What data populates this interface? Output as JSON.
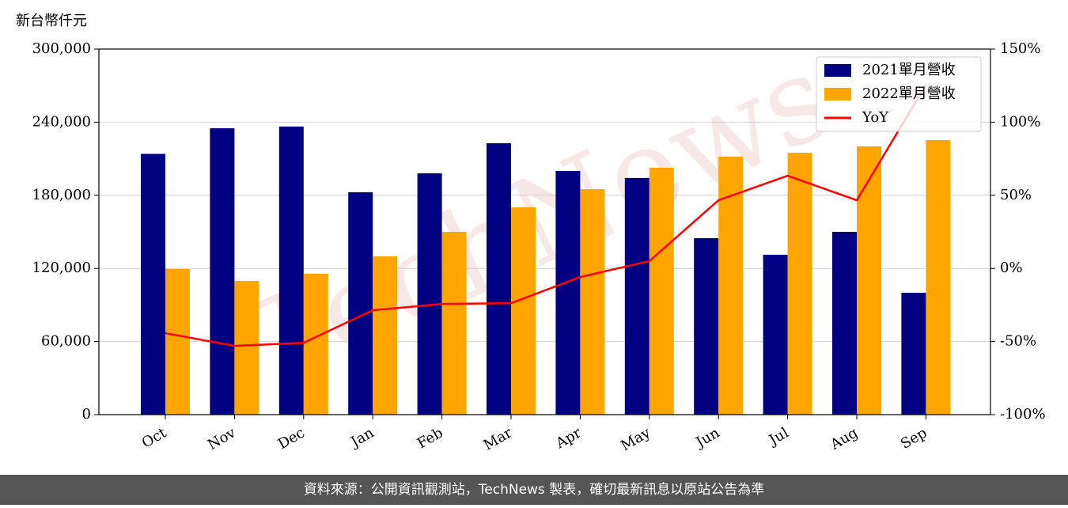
{
  "chart_data": {
    "type": "bar_line",
    "y_label": "新台幣仟元",
    "watermark": "TechNews",
    "footer": "資料來源：公開資訊觀測站，TechNews 製表，確切最新訊息以原站公告為準",
    "categories": [
      "Oct",
      "Nov",
      "Dec",
      "Jan",
      "Feb",
      "Mar",
      "Apr",
      "May",
      "Jun",
      "Jul",
      "Aug",
      "Sep"
    ],
    "series": [
      {
        "name": "2021單月營收",
        "color": "#000080",
        "type": "bar",
        "values": [
          214000,
          235000,
          236400,
          182500,
          198000,
          222700,
          200000,
          194200,
          144800,
          131200,
          150000,
          100000
        ]
      },
      {
        "name": "2022單月營收",
        "color": "#ffa500",
        "type": "bar",
        "values": [
          119500,
          109700,
          115600,
          129900,
          150000,
          170100,
          185000,
          202600,
          211700,
          214900,
          220100,
          225300
        ]
      },
      {
        "name": "YoY",
        "color": "#ff0000",
        "type": "line",
        "axis": "y2",
        "values": [
          -44.3,
          -53,
          -50.9,
          -28.6,
          -24.3,
          -23.8,
          -5.9,
          5,
          46.6,
          63.4,
          46.6,
          125.5
        ]
      }
    ],
    "ylim": [
      0,
      300000
    ],
    "yticks": [
      0,
      {
        "value": 60000,
        "label": "60,000"
      },
      {
        "value": 120000,
        "label": "120,000"
      },
      {
        "value": 180000,
        "label": "180,000"
      },
      {
        "value": 240000,
        "label": "240,000"
      },
      {
        "value": 300000,
        "label": "300,000"
      }
    ],
    "y2lim": [
      -100,
      150
    ],
    "y2ticks": [
      {
        "value": -100,
        "label": "-100%"
      },
      {
        "value": -50,
        "label": "-50%"
      },
      {
        "value": 0,
        "label": "0%"
      },
      {
        "value": 50,
        "label": "50%"
      },
      {
        "value": 100,
        "label": "100%"
      },
      {
        "value": 150,
        "label": "150%"
      }
    ],
    "grid": true,
    "legend": "upper right"
  }
}
